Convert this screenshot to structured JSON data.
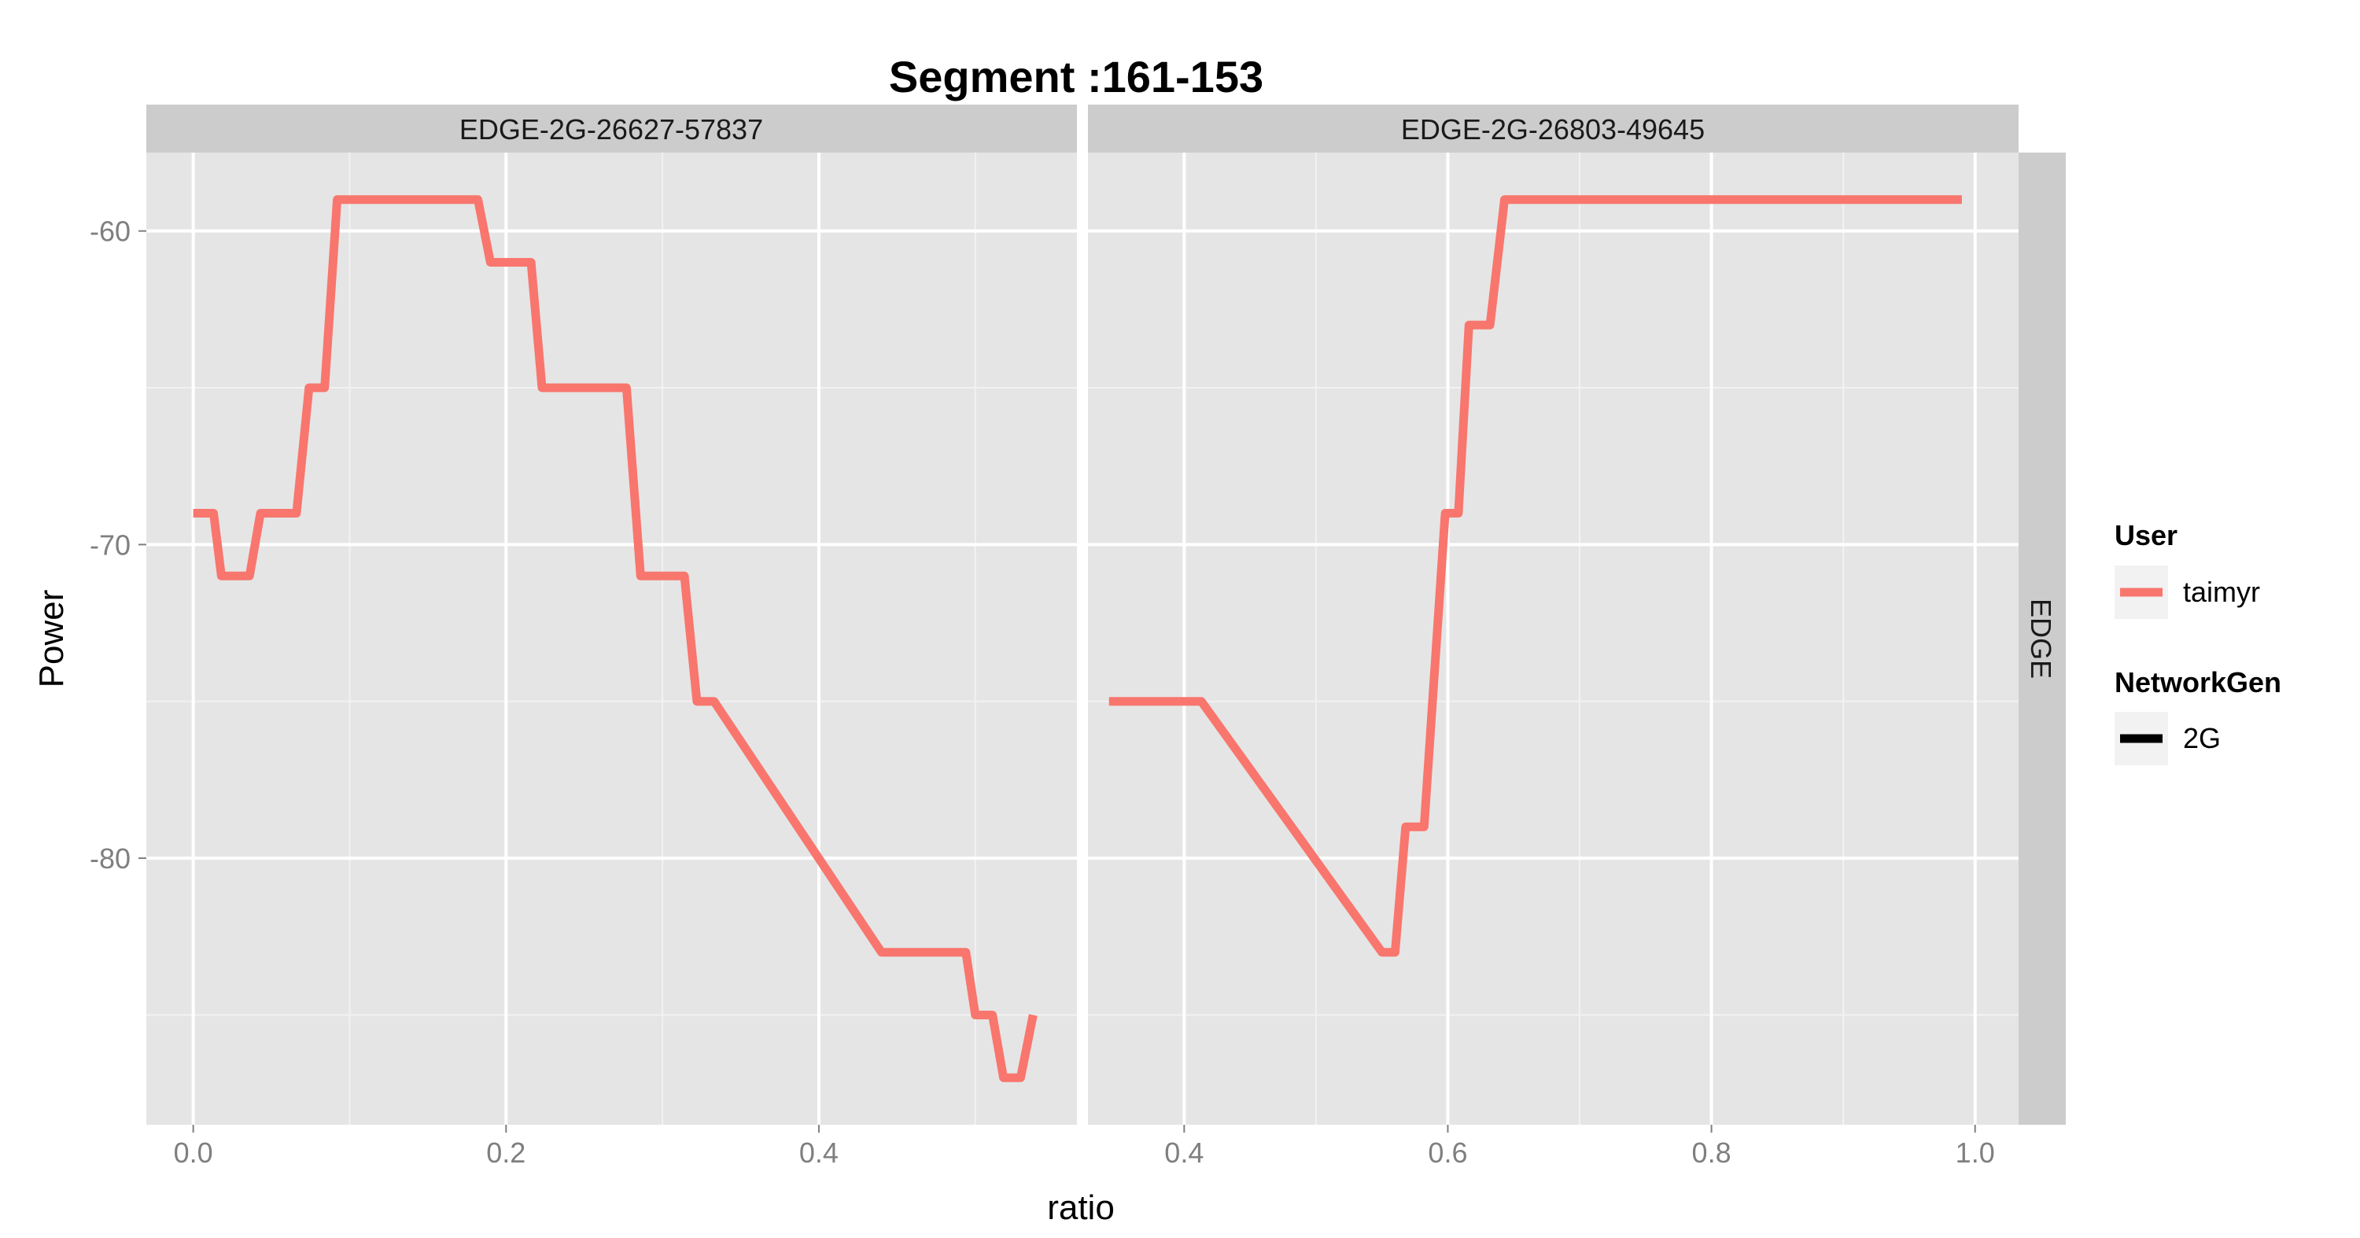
{
  "chart_data": {
    "type": "line",
    "title": "Segment :161-153",
    "xlabel": "ratio",
    "ylabel": "Power",
    "row_strip": "EDGE",
    "ylim": [
      -88.5,
      -57.5
    ],
    "yticks": [
      -60,
      -70,
      -80
    ],
    "ytick_labels": [
      "-60",
      "-70",
      "-80"
    ],
    "grid": true,
    "line_color": "#F8766D",
    "panels": [
      {
        "strip": "EDGE-2G-26627-57837",
        "xlim": [
          -0.03,
          0.565
        ],
        "xticks": [
          0.0,
          0.2,
          0.4
        ],
        "xtick_labels": [
          "0.0",
          "0.2",
          "0.4"
        ],
        "x": [
          0,
          0.013,
          0.018,
          0.036,
          0.043,
          0.066,
          0.074,
          0.084,
          0.092,
          0.182,
          0.19,
          0.216,
          0.223,
          0.277,
          0.286,
          0.314,
          0.322,
          0.333,
          0.44,
          0.494,
          0.5,
          0.511,
          0.518,
          0.529,
          0.537
        ],
        "y": [
          -69,
          -69,
          -71,
          -71,
          -69,
          -69,
          -65,
          -65,
          -59,
          -59,
          -61,
          -61,
          -65,
          -65,
          -71,
          -71,
          -75,
          -75,
          -83,
          -83,
          -85,
          -85,
          -87,
          -87,
          -85
        ]
      },
      {
        "strip": "EDGE-2G-26803-49645",
        "xlim": [
          0.327,
          1.033
        ],
        "xticks": [
          0.4,
          0.6,
          0.8,
          1.0
        ],
        "xtick_labels": [
          "0.4",
          "0.6",
          "0.8",
          "1.0"
        ],
        "x": [
          0.343,
          0.413,
          0.55,
          0.56,
          0.568,
          0.582,
          0.598,
          0.608,
          0.616,
          0.632,
          0.643,
          0.99
        ],
        "y": [
          -75,
          -75,
          -83,
          -83,
          -79,
          -79,
          -69,
          -69,
          -63,
          -63,
          -59,
          -59
        ]
      }
    ],
    "legend": {
      "position": "right",
      "groups": [
        {
          "title": "User",
          "entries": [
            {
              "label": "taimyr",
              "color": "#F8766D"
            }
          ]
        },
        {
          "title": "NetworkGen",
          "entries": [
            {
              "label": "2G",
              "color": "#000000"
            }
          ]
        }
      ]
    }
  }
}
